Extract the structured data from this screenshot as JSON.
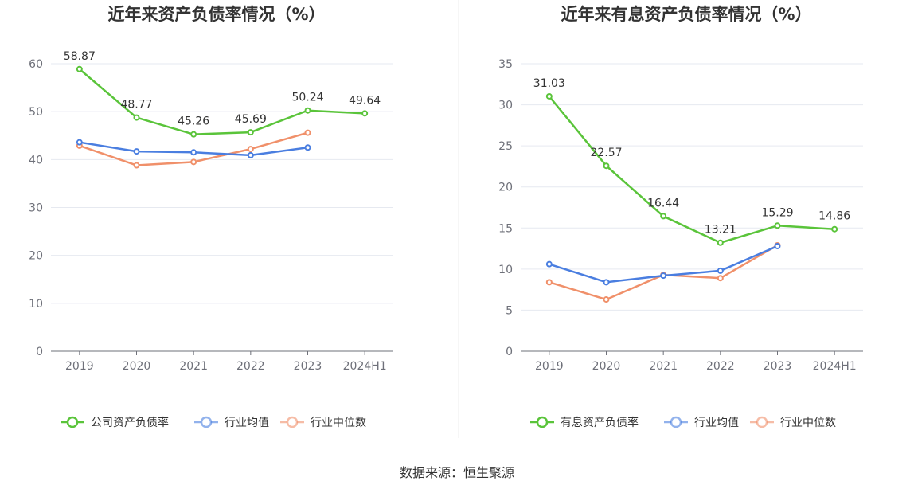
{
  "source": "数据来源：恒生聚源",
  "colors": {
    "company": "#5ac43a",
    "avg": "#4a7ee0",
    "median": "#f0906a",
    "grid": "#e6e9f0",
    "axis": "#6e7079"
  },
  "chart_data": [
    {
      "type": "line",
      "title": "近年来资产负债率情况（%）",
      "categories": [
        "2019",
        "2020",
        "2021",
        "2022",
        "2023",
        "2024H1"
      ],
      "ylim": [
        0,
        60
      ],
      "yticks": [
        "0",
        "10",
        "20",
        "30",
        "40",
        "50",
        "60"
      ],
      "ytick_values": [
        0,
        10,
        20,
        30,
        40,
        50,
        60
      ],
      "grid": true,
      "legend": "bottom",
      "series": [
        {
          "name": "公司资产负债率",
          "key": "company",
          "values": [
            58.87,
            48.77,
            45.26,
            45.69,
            50.24,
            49.64
          ],
          "labels": [
            "58.87",
            "48.77",
            "45.26",
            "45.69",
            "50.24",
            "49.64"
          ]
        },
        {
          "name": "行业均值",
          "key": "avg",
          "values": [
            43.6,
            41.7,
            41.5,
            40.9,
            42.5,
            null
          ],
          "labels": []
        },
        {
          "name": "行业中位数",
          "key": "median",
          "values": [
            42.9,
            38.8,
            39.5,
            42.2,
            45.6,
            null
          ],
          "labels": []
        }
      ]
    },
    {
      "type": "line",
      "title": "近年来有息资产负债率情况（%）",
      "categories": [
        "2019",
        "2020",
        "2021",
        "2022",
        "2023",
        "2024H1"
      ],
      "ylim": [
        0,
        35
      ],
      "yticks": [
        "0",
        "5",
        "10",
        "15",
        "20",
        "25",
        "30",
        "35"
      ],
      "ytick_values": [
        0,
        5,
        10,
        15,
        20,
        25,
        30,
        35
      ],
      "grid": true,
      "legend": "bottom",
      "series": [
        {
          "name": "有息资产负债率",
          "key": "company",
          "values": [
            31.03,
            22.57,
            16.44,
            13.21,
            15.29,
            14.86
          ],
          "labels": [
            "31.03",
            "22.57",
            "16.44",
            "13.21",
            "15.29",
            "14.86"
          ]
        },
        {
          "name": "行业均值",
          "key": "avg",
          "values": [
            10.6,
            8.4,
            9.2,
            9.8,
            12.8,
            null
          ],
          "labels": []
        },
        {
          "name": "行业中位数",
          "key": "median",
          "values": [
            8.4,
            6.3,
            9.3,
            8.9,
            12.9,
            null
          ],
          "labels": []
        }
      ]
    }
  ]
}
